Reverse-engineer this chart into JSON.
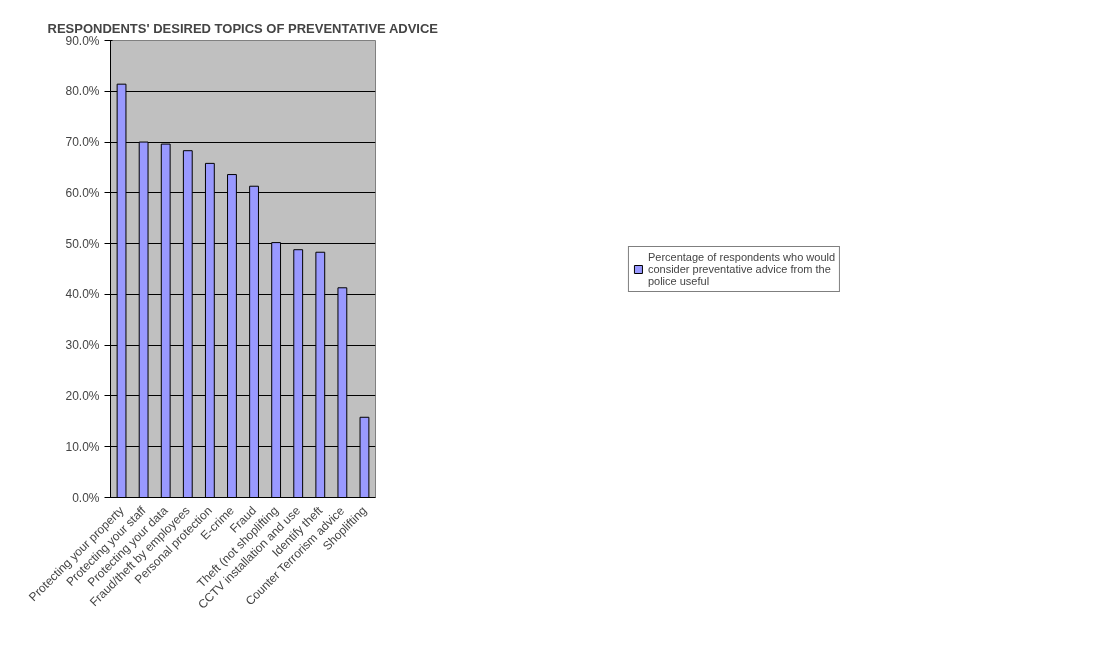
{
  "chart_data": {
    "type": "bar",
    "title": "RESPONDENTS' DESIRED TOPICS OF PREVENTATIVE ADVICE",
    "categories": [
      "Protecting your property",
      "Protecting your staff",
      "Protecting your data",
      "Fraud/theft by employees",
      "Personal protection",
      "E-crime",
      "Fraud",
      "Theft (not shoplifting",
      "CCTV installation and use",
      "Identify theft",
      "Counter Terrorism advice",
      "Shoplifting"
    ],
    "series": [
      {
        "name": "Percentage of respondents who would consider preventative advice from the police useful",
        "color": "#9999ff",
        "values": [
          81.4,
          70.0,
          69.6,
          68.3,
          65.8,
          63.6,
          61.3,
          50.2,
          48.8,
          48.3,
          41.3,
          15.8
        ]
      }
    ],
    "ylim": [
      0,
      90
    ],
    "yticks": [
      {
        "value": 0,
        "label": "0.0%"
      },
      {
        "value": 10,
        "label": "10.0%"
      },
      {
        "value": 20,
        "label": "20.0%"
      },
      {
        "value": 30,
        "label": "30.0%"
      },
      {
        "value": 40,
        "label": "40.0%"
      },
      {
        "value": 50,
        "label": "50.0%"
      },
      {
        "value": 60,
        "label": "60.0%"
      },
      {
        "value": 70,
        "label": "70.0%"
      },
      {
        "value": 80,
        "label": "80.0%"
      },
      {
        "value": 90,
        "label": "90.0%"
      }
    ],
    "grid": "y",
    "legend": "right"
  }
}
